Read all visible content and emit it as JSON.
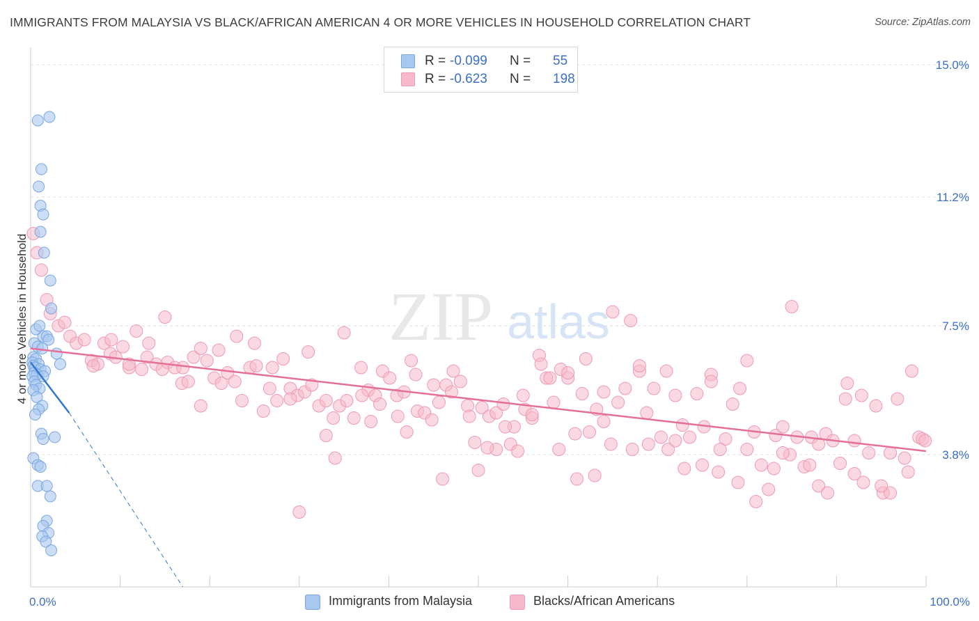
{
  "header": {
    "title": "IMMIGRANTS FROM MALAYSIA VS BLACK/AFRICAN AMERICAN 4 OR MORE VEHICLES IN HOUSEHOLD CORRELATION CHART",
    "source": "Source: ZipAtlas.com"
  },
  "watermark": {
    "zip": "ZIP",
    "atlas": "atlas"
  },
  "legend_top": {
    "row1": {
      "r_label": "R =",
      "r_value": "-0.099",
      "n_label": "N =",
      "n_value": "55"
    },
    "row2": {
      "r_label": "R =",
      "r_value": "-0.623",
      "n_label": "N =",
      "n_value": "198"
    }
  },
  "colors": {
    "blue_fill": "#a9c8f0",
    "blue_stroke": "#7aa7e0",
    "blue_line": "#2f77d0",
    "pink_fill": "#f6b9cb",
    "pink_stroke": "#ee9ab3",
    "pink_line": "#e46f97",
    "tick_text": "#3b6fc4",
    "grid": "#dddddd"
  },
  "chart_data": {
    "type": "scatter",
    "title": "IMMIGRANTS FROM MALAYSIA VS BLACK/AFRICAN AMERICAN 4 OR MORE VEHICLES IN HOUSEHOLD CORRELATION CHART",
    "xlabel": "",
    "ylabel": "4 or more Vehicles in Household",
    "xlim": [
      0,
      100
    ],
    "ylim": [
      0,
      15.4
    ],
    "x_tick_labels": [
      "0.0%",
      "100.0%"
    ],
    "y_ticks": [
      3.8,
      7.5,
      11.2,
      15.0
    ],
    "y_tick_labels": [
      "3.8%",
      "7.5%",
      "11.2%",
      "15.0%"
    ],
    "legend": [
      "Immigrants from Malaysia",
      "Blacks/African Americans"
    ],
    "series": [
      {
        "name": "Immigrants from Malaysia",
        "color": "#a9c8f0",
        "points": [
          [
            0.8,
            13.4
          ],
          [
            2.1,
            13.5
          ],
          [
            1.2,
            12.0
          ],
          [
            0.9,
            11.5
          ],
          [
            1.1,
            10.95
          ],
          [
            1.4,
            10.7
          ],
          [
            1.1,
            10.2
          ],
          [
            1.5,
            9.6
          ],
          [
            2.2,
            8.8
          ],
          [
            2.3,
            8.0
          ],
          [
            1.4,
            7.2
          ],
          [
            1.8,
            7.2
          ],
          [
            0.6,
            7.4
          ],
          [
            1.0,
            7.5
          ],
          [
            2.0,
            7.1
          ],
          [
            0.4,
            7.0
          ],
          [
            0.8,
            6.9
          ],
          [
            1.3,
            6.85
          ],
          [
            2.9,
            6.7
          ],
          [
            0.3,
            6.6
          ],
          [
            0.6,
            6.55
          ],
          [
            0.2,
            6.45
          ],
          [
            0.9,
            6.4
          ],
          [
            3.3,
            6.4
          ],
          [
            0.3,
            6.35
          ],
          [
            0.5,
            6.3
          ],
          [
            1.1,
            6.25
          ],
          [
            1.6,
            6.2
          ],
          [
            0.4,
            6.15
          ],
          [
            0.7,
            6.1
          ],
          [
            0.2,
            6.05
          ],
          [
            1.4,
            6.05
          ],
          [
            0.4,
            5.9
          ],
          [
            0.6,
            5.8
          ],
          [
            1.0,
            5.7
          ],
          [
            0.3,
            5.65
          ],
          [
            0.7,
            5.45
          ],
          [
            1.3,
            5.2
          ],
          [
            0.9,
            5.1
          ],
          [
            0.5,
            4.95
          ],
          [
            1.2,
            4.4
          ],
          [
            2.7,
            4.3
          ],
          [
            1.4,
            4.25
          ],
          [
            0.3,
            3.7
          ],
          [
            0.8,
            3.5
          ],
          [
            1.1,
            3.45
          ],
          [
            0.8,
            2.9
          ],
          [
            1.8,
            2.9
          ],
          [
            2.2,
            2.6
          ],
          [
            1.8,
            1.9
          ],
          [
            1.4,
            1.75
          ],
          [
            2.0,
            1.55
          ],
          [
            1.3,
            1.45
          ],
          [
            1.7,
            1.3
          ],
          [
            2.3,
            1.05
          ]
        ]
      },
      {
        "name": "Blacks/African Americans",
        "color": "#f6b9cb",
        "points": [
          [
            0.3,
            10.15
          ],
          [
            0.7,
            9.6
          ],
          [
            1.2,
            9.1
          ],
          [
            1.8,
            8.25
          ],
          [
            2.2,
            7.85
          ],
          [
            3.1,
            7.5
          ],
          [
            3.8,
            7.6
          ],
          [
            4.4,
            7.2
          ],
          [
            5.1,
            7.0
          ],
          [
            6.0,
            7.1
          ],
          [
            6.8,
            6.5
          ],
          [
            7.5,
            6.4
          ],
          [
            8.2,
            7.0
          ],
          [
            8.9,
            6.7
          ],
          [
            9.5,
            6.6
          ],
          [
            10.3,
            6.9
          ],
          [
            11.0,
            6.3
          ],
          [
            11.8,
            7.35
          ],
          [
            12.4,
            6.25
          ],
          [
            13.2,
            7.0
          ],
          [
            14.0,
            6.4
          ],
          [
            14.7,
            6.25
          ],
          [
            15.3,
            6.45
          ],
          [
            16.1,
            6.3
          ],
          [
            16.9,
            5.85
          ],
          [
            17.6,
            5.9
          ],
          [
            18.2,
            6.6
          ],
          [
            19.0,
            6.85
          ],
          [
            19.7,
            6.5
          ],
          [
            20.5,
            6.0
          ],
          [
            21.3,
            5.85
          ],
          [
            22.0,
            6.15
          ],
          [
            22.8,
            5.9
          ],
          [
            23.6,
            5.35
          ],
          [
            24.5,
            6.3
          ],
          [
            25.2,
            6.35
          ],
          [
            26.0,
            5.05
          ],
          [
            26.7,
            5.7
          ],
          [
            27.5,
            5.35
          ],
          [
            28.2,
            6.55
          ],
          [
            29.0,
            5.7
          ],
          [
            29.8,
            5.5
          ],
          [
            30.6,
            5.6
          ],
          [
            31.4,
            5.8
          ],
          [
            32.2,
            5.2
          ],
          [
            33.0,
            5.35
          ],
          [
            33.8,
            4.85
          ],
          [
            34.5,
            5.2
          ],
          [
            35.3,
            5.35
          ],
          [
            36.1,
            4.85
          ],
          [
            36.9,
            6.3
          ],
          [
            37.7,
            5.65
          ],
          [
            38.5,
            5.5
          ],
          [
            39.3,
            6.2
          ],
          [
            40.1,
            6.0
          ],
          [
            40.9,
            5.5
          ],
          [
            41.7,
            5.6
          ],
          [
            42.5,
            6.5
          ],
          [
            43.2,
            5.05
          ],
          [
            44.0,
            5.0
          ],
          [
            44.8,
            4.8
          ],
          [
            45.6,
            5.3
          ],
          [
            46.4,
            5.8
          ],
          [
            47.2,
            6.2
          ],
          [
            48.0,
            5.9
          ],
          [
            48.8,
            5.2
          ],
          [
            49.6,
            4.15
          ],
          [
            50.4,
            5.15
          ],
          [
            51.2,
            4.9
          ],
          [
            52.0,
            5.0
          ],
          [
            52.8,
            5.25
          ],
          [
            53.6,
            4.1
          ],
          [
            54.4,
            3.9
          ],
          [
            55.2,
            5.1
          ],
          [
            56.0,
            4.85
          ],
          [
            56.8,
            6.65
          ],
          [
            57.6,
            6.0
          ],
          [
            58.4,
            5.3
          ],
          [
            59.2,
            6.25
          ],
          [
            60.0,
            6.0
          ],
          [
            60.8,
            4.4
          ],
          [
            61.6,
            5.55
          ],
          [
            62.4,
            4.45
          ],
          [
            63.2,
            5.1
          ],
          [
            64.0,
            4.75
          ],
          [
            64.8,
            4.1
          ],
          [
            65.6,
            5.3
          ],
          [
            66.4,
            5.7
          ],
          [
            67.2,
            3.95
          ],
          [
            68.0,
            6.2
          ],
          [
            68.8,
            5.0
          ],
          [
            69.6,
            5.7
          ],
          [
            70.4,
            4.3
          ],
          [
            71.2,
            3.95
          ],
          [
            72.0,
            4.2
          ],
          [
            72.8,
            4.65
          ],
          [
            73.6,
            4.3
          ],
          [
            74.4,
            5.55
          ],
          [
            75.2,
            4.6
          ],
          [
            76.0,
            6.1
          ],
          [
            76.8,
            3.3
          ],
          [
            77.6,
            4.25
          ],
          [
            78.4,
            5.25
          ],
          [
            79.2,
            5.7
          ],
          [
            80.0,
            3.95
          ],
          [
            80.8,
            4.45
          ],
          [
            81.6,
            3.5
          ],
          [
            82.4,
            2.8
          ],
          [
            83.2,
            4.35
          ],
          [
            84.0,
            4.6
          ],
          [
            84.8,
            3.8
          ],
          [
            85.6,
            4.3
          ],
          [
            86.4,
            3.45
          ],
          [
            87.2,
            4.3
          ],
          [
            88.0,
            2.9
          ],
          [
            88.8,
            4.4
          ],
          [
            89.6,
            4.2
          ],
          [
            90.4,
            3.55
          ],
          [
            91.2,
            5.85
          ],
          [
            92.0,
            4.2
          ],
          [
            92.8,
            5.5
          ],
          [
            93.6,
            3.85
          ],
          [
            94.4,
            5.2
          ],
          [
            95.2,
            2.7
          ],
          [
            96.0,
            3.85
          ],
          [
            96.8,
            5.4
          ],
          [
            97.6,
            3.7
          ],
          [
            98.4,
            6.2
          ],
          [
            99.2,
            4.3
          ],
          [
            99.6,
            4.25
          ],
          [
            99.9,
            4.2
          ],
          [
            62.0,
            6.55
          ],
          [
            58.0,
            6.0
          ],
          [
            54.0,
            4.6
          ],
          [
            50.0,
            3.35
          ],
          [
            46.0,
            3.1
          ],
          [
            42.0,
            4.45
          ],
          [
            38.0,
            4.75
          ],
          [
            34.0,
            3.7
          ],
          [
            30.0,
            2.15
          ],
          [
            52.0,
            3.95
          ],
          [
            56.0,
            4.95
          ],
          [
            60.0,
            6.15
          ],
          [
            64.0,
            5.6
          ],
          [
            68.0,
            6.35
          ],
          [
            72.0,
            5.5
          ],
          [
            76.0,
            5.9
          ],
          [
            80.0,
            6.5
          ],
          [
            84.0,
            3.85
          ],
          [
            88.0,
            4.1
          ],
          [
            92.0,
            3.25
          ],
          [
            96.0,
            2.7
          ],
          [
            98.0,
            3.3
          ],
          [
            95.0,
            2.9
          ],
          [
            93.0,
            3.0
          ],
          [
            91.0,
            5.4
          ],
          [
            89.0,
            2.7
          ],
          [
            87.0,
            3.5
          ],
          [
            85.0,
            8.05
          ],
          [
            83.0,
            3.4
          ],
          [
            81.0,
            2.45
          ],
          [
            79.0,
            3.0
          ],
          [
            77.0,
            3.95
          ],
          [
            75.0,
            3.5
          ],
          [
            73.0,
            3.4
          ],
          [
            71.0,
            6.2
          ],
          [
            69.0,
            4.1
          ],
          [
            67.0,
            7.65
          ],
          [
            65.0,
            7.9
          ],
          [
            63.0,
            3.2
          ],
          [
            61.0,
            3.1
          ],
          [
            59.0,
            3.95
          ],
          [
            57.0,
            6.4
          ],
          [
            55.0,
            5.5
          ],
          [
            53.0,
            4.6
          ],
          [
            51.0,
            4.0
          ],
          [
            49.0,
            4.9
          ],
          [
            47.0,
            5.6
          ],
          [
            45.0,
            5.8
          ],
          [
            43.0,
            6.1
          ],
          [
            41.0,
            4.9
          ],
          [
            39.0,
            5.25
          ],
          [
            37.0,
            5.5
          ],
          [
            35.0,
            7.3
          ],
          [
            33.0,
            4.35
          ],
          [
            31.0,
            6.75
          ],
          [
            29.0,
            5.4
          ],
          [
            27.0,
            6.3
          ],
          [
            25.0,
            7.0
          ],
          [
            23.0,
            7.2
          ],
          [
            21.0,
            6.8
          ],
          [
            19.0,
            5.2
          ],
          [
            17.0,
            6.3
          ],
          [
            15.0,
            7.75
          ],
          [
            13.0,
            6.6
          ],
          [
            11.0,
            6.4
          ],
          [
            9.0,
            7.1
          ],
          [
            7.0,
            6.35
          ]
        ]
      }
    ],
    "trend_lines": [
      {
        "series": "Immigrants from Malaysia",
        "from": [
          0.0,
          6.45
        ],
        "to": [
          4.3,
          5.0
        ],
        "dashed_from": [
          4.3,
          5.0
        ],
        "dashed_to": [
          17.0,
          0.0
        ]
      },
      {
        "series": "Blacks/African Americans",
        "from": [
          0.0,
          6.85
        ],
        "to": [
          100.0,
          3.9
        ]
      }
    ]
  },
  "legend_bottom": {
    "item1": "Immigrants from Malaysia",
    "item2": "Blacks/African Americans"
  }
}
